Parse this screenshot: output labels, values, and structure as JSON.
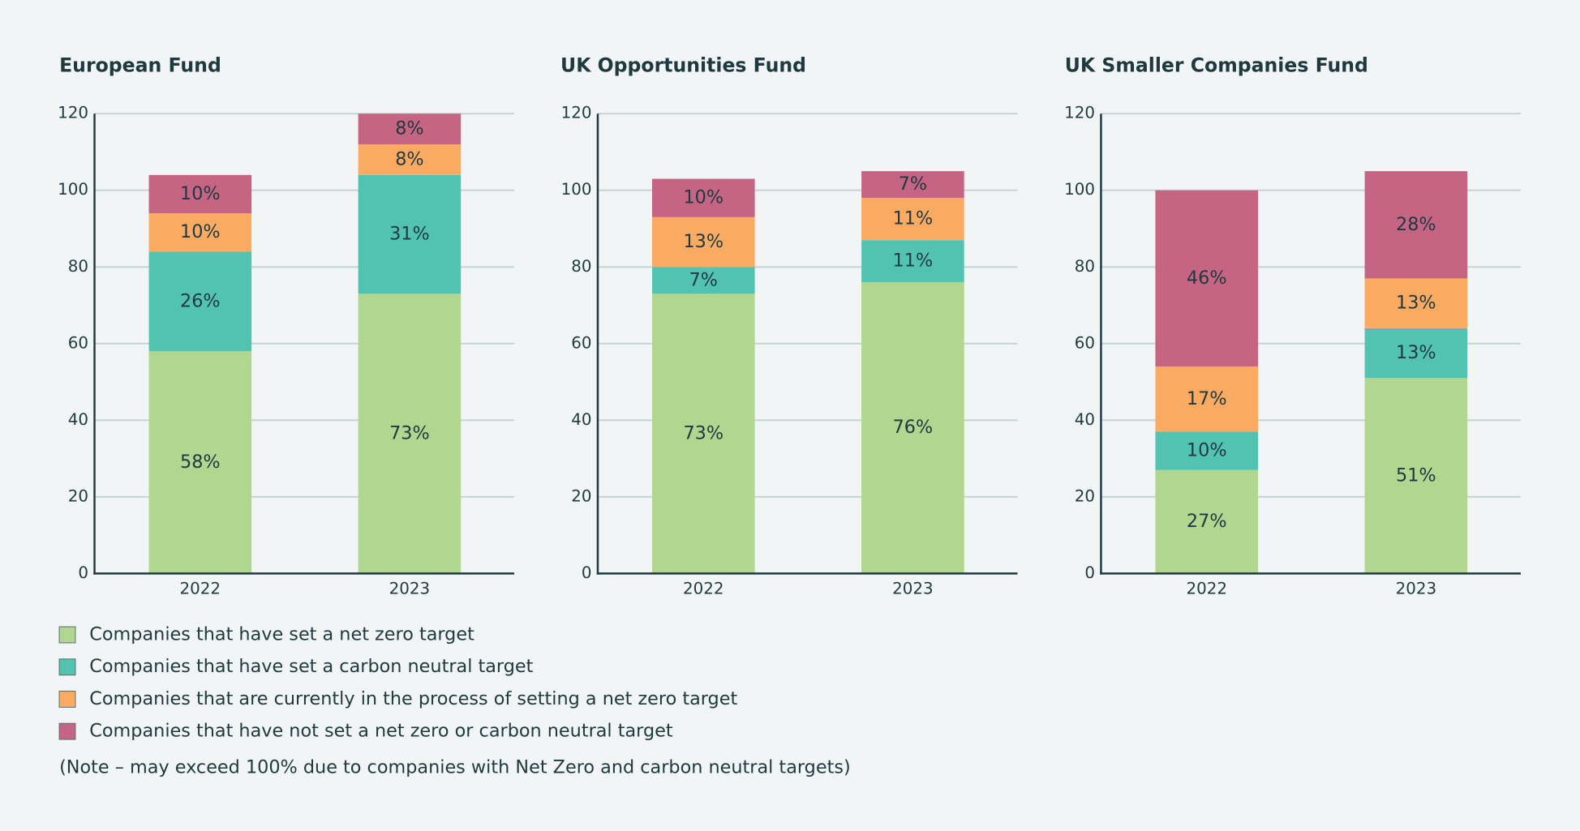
{
  "chart_data": [
    {
      "type": "bar",
      "stacked": true,
      "title": "European Fund",
      "categories": [
        "2022",
        "2023"
      ],
      "series": [
        {
          "values": [
            58,
            73
          ],
          "value_labels": [
            "58%",
            "73%"
          ]
        },
        {
          "values": [
            26,
            31
          ],
          "value_labels": [
            "26%",
            "31%"
          ]
        },
        {
          "values": [
            10,
            8
          ],
          "value_labels": [
            "10%",
            "8%"
          ]
        },
        {
          "values": [
            10,
            8
          ],
          "value_labels": [
            "10%",
            "8%"
          ]
        }
      ],
      "ylim": [
        0,
        120
      ],
      "yticks": [
        0,
        20,
        40,
        60,
        80,
        100,
        120
      ],
      "grid": true
    },
    {
      "type": "bar",
      "stacked": true,
      "title": "UK Opportunities Fund",
      "categories": [
        "2022",
        "2023"
      ],
      "series": [
        {
          "values": [
            73,
            76
          ],
          "value_labels": [
            "73%",
            "76%"
          ]
        },
        {
          "values": [
            7,
            11
          ],
          "value_labels": [
            "7%",
            "11%"
          ]
        },
        {
          "values": [
            13,
            11
          ],
          "value_labels": [
            "13%",
            "11%"
          ]
        },
        {
          "values": [
            10,
            7
          ],
          "value_labels": [
            "10%",
            "7%"
          ]
        }
      ],
      "ylim": [
        0,
        120
      ],
      "yticks": [
        0,
        20,
        40,
        60,
        80,
        100,
        120
      ],
      "grid": true
    },
    {
      "type": "bar",
      "stacked": true,
      "title": "UK Smaller Companies Fund",
      "categories": [
        "2022",
        "2023"
      ],
      "series": [
        {
          "values": [
            27,
            51
          ],
          "value_labels": [
            "27%",
            "51%"
          ]
        },
        {
          "values": [
            10,
            13
          ],
          "value_labels": [
            "10%",
            "13%"
          ]
        },
        {
          "values": [
            17,
            13
          ],
          "value_labels": [
            "17%",
            "13%"
          ]
        },
        {
          "values": [
            46,
            28
          ],
          "value_labels": [
            "46%",
            "28%"
          ]
        }
      ],
      "ylim": [
        0,
        120
      ],
      "yticks": [
        0,
        20,
        40,
        60,
        80,
        100,
        120
      ],
      "grid": true
    }
  ],
  "legend": [
    {
      "name": "Companies that have set a net zero target",
      "color": "#b0d68f"
    },
    {
      "name": "Companies that have set a carbon neutral target",
      "color": "#53c3b1"
    },
    {
      "name": "Companies that are currently in the process of setting a net zero target",
      "color": "#fbaa62"
    },
    {
      "name": "Companies that have not set a net zero or carbon neutral target",
      "color": "#c66484"
    }
  ],
  "note": "(Note – may exceed 100% due to companies with Net Zero and carbon neutral targets)"
}
